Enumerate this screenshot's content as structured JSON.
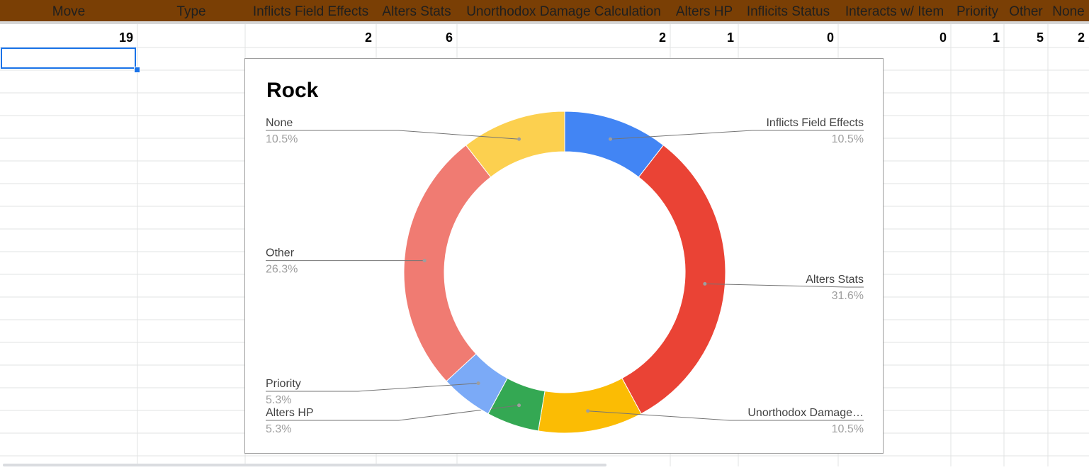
{
  "sheet": {
    "header_bg": "#7a3f05",
    "headers": [
      "Move",
      "Type",
      "Inflicts Field Effects",
      "Alters Stats",
      "Unorthodox Damage Calculation",
      "Alters HP",
      "Inflicits Status",
      "Interacts w/ Item",
      "Priority",
      "Other",
      "None"
    ],
    "values_row": [
      "19",
      "",
      "2",
      "6",
      "2",
      "1",
      "0",
      "0",
      "1",
      "5",
      "2"
    ]
  },
  "chart_data": {
    "type": "pie",
    "donut": true,
    "title": "Rock",
    "slices": [
      {
        "label": "Inflicts Field Effects",
        "display_label": "Inflicts Field Effects",
        "value": 2,
        "percent": "10.5%",
        "color": "#4285f4"
      },
      {
        "label": "Alters Stats",
        "display_label": "Alters Stats",
        "value": 6,
        "percent": "31.6%",
        "color": "#ea4335"
      },
      {
        "label": "Unorthodox Damage Calculation",
        "display_label": "Unorthodox Damage…",
        "value": 2,
        "percent": "10.5%",
        "color": "#fbbc04"
      },
      {
        "label": "Alters HP",
        "display_label": "Alters HP",
        "value": 1,
        "percent": "5.3%",
        "color": "#34a853"
      },
      {
        "label": "Priority",
        "display_label": "Priority",
        "value": 1,
        "percent": "5.3%",
        "color": "#7baaf7"
      },
      {
        "label": "Other",
        "display_label": "Other",
        "value": 5,
        "percent": "26.3%",
        "color": "#f07b72"
      },
      {
        "label": "None",
        "display_label": "None",
        "value": 2,
        "percent": "10.5%",
        "color": "#fcd04f"
      }
    ]
  }
}
